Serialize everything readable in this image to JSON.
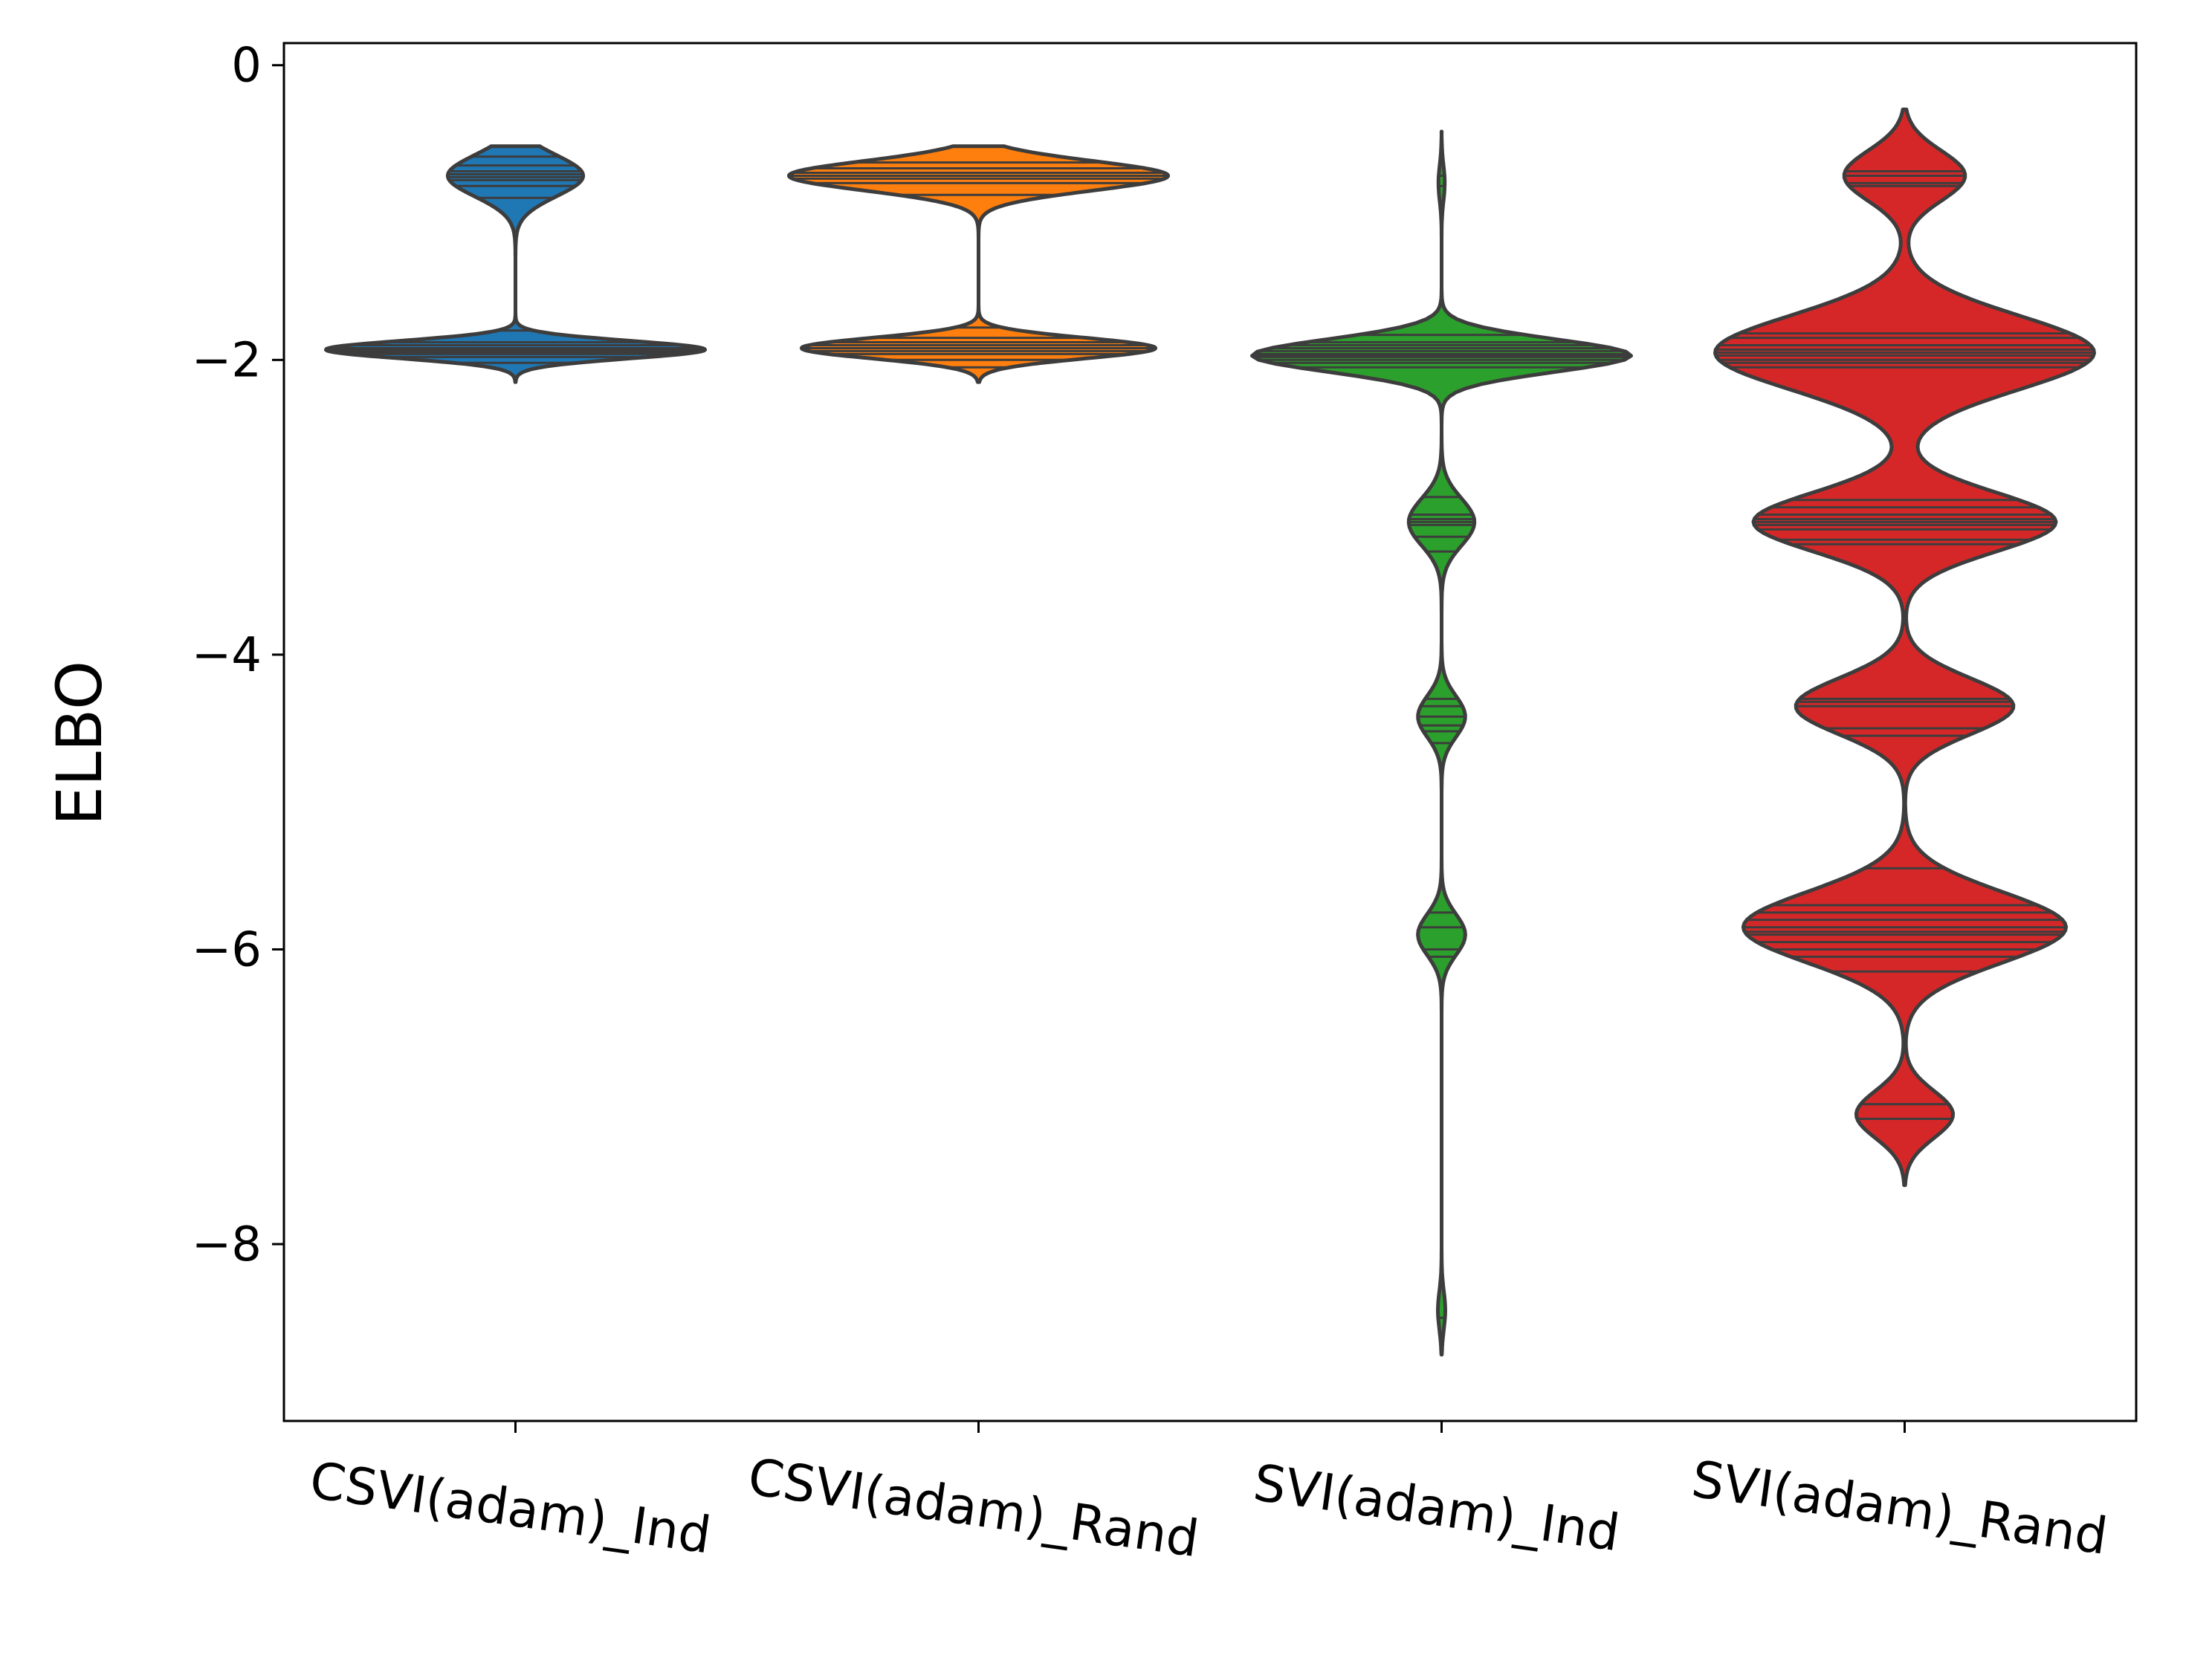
{
  "chart_data": {
    "type": "violin",
    "title": "",
    "xlabel": "",
    "ylabel": "ELBO",
    "ylim": [
      -9.2,
      0.15
    ],
    "yticks": [
      0,
      -2,
      -4,
      -6,
      -8
    ],
    "ytick_labels": [
      "0",
      "−2",
      "−4",
      "−6",
      "−8"
    ],
    "categories": [
      "CSVI(adam)_Ind",
      "CSVI(adam)_Rand",
      "SVI(adam)_Ind",
      "SVI(adam)_Rand"
    ],
    "colors": [
      "#1f77b4",
      "#ff7f0e",
      "#2ca02c",
      "#d62728"
    ],
    "edge_color": "#3d3d3d",
    "series": [
      {
        "range": [
          -2.15,
          -0.55
        ],
        "modes": [
          [
            -0.75,
            0.14,
            1.0
          ],
          [
            -1.93,
            0.06,
            2.8
          ]
        ],
        "observations": [
          -0.62,
          -0.68,
          -0.72,
          -0.74,
          -0.76,
          -0.78,
          -0.82,
          -0.9,
          -1.8,
          -1.88,
          -1.9,
          -1.92,
          -1.93,
          -1.94,
          -1.95,
          -1.96,
          -1.98,
          -2.02
        ]
      },
      {
        "range": [
          -2.15,
          -0.55
        ],
        "modes": [
          [
            -0.75,
            0.1,
            3.0
          ],
          [
            -1.92,
            0.07,
            2.8
          ]
        ],
        "observations": [
          -0.66,
          -0.7,
          -0.73,
          -0.75,
          -0.77,
          -0.8,
          -0.88,
          -1.78,
          -1.85,
          -1.88,
          -1.9,
          -1.92,
          -1.94,
          -1.96,
          -2.0,
          -2.05
        ]
      },
      {
        "range": [
          -8.75,
          -0.45
        ],
        "modes": [
          [
            -0.8,
            0.12,
            0.12
          ],
          [
            -1.97,
            0.11,
            7.2
          ],
          [
            -3.1,
            0.16,
            1.25
          ],
          [
            -4.42,
            0.14,
            0.9
          ],
          [
            -5.9,
            0.14,
            0.9
          ],
          [
            -8.45,
            0.13,
            0.14
          ]
        ],
        "observations": [
          -0.75,
          -0.82,
          -1.83,
          -1.88,
          -1.9,
          -1.92,
          -1.94,
          -1.96,
          -1.97,
          -1.98,
          -2.0,
          -2.02,
          -2.05,
          -2.93,
          -3.05,
          -3.08,
          -3.1,
          -3.12,
          -3.2,
          -3.3,
          -4.3,
          -4.35,
          -4.42,
          -4.48,
          -4.52,
          -4.6,
          -5.75,
          -5.85,
          -6.0,
          -6.05,
          -8.5
        ]
      },
      {
        "range": [
          -7.6,
          -0.3
        ],
        "modes": [
          [
            -0.75,
            0.17,
            1.5
          ],
          [
            -1.95,
            0.25,
            4.7
          ],
          [
            -3.1,
            0.2,
            3.75
          ],
          [
            -4.35,
            0.19,
            2.7
          ],
          [
            -5.85,
            0.24,
            4.0
          ],
          [
            -7.12,
            0.16,
            1.2
          ]
        ],
        "observations": [
          -0.72,
          -0.75,
          -0.8,
          -0.82,
          -1.82,
          -1.85,
          -1.9,
          -1.93,
          -1.95,
          -1.97,
          -2.0,
          -2.02,
          -2.05,
          -2.95,
          -3.0,
          -3.05,
          -3.08,
          -3.1,
          -3.12,
          -3.15,
          -3.22,
          -3.25,
          -4.3,
          -4.32,
          -4.35,
          -4.5,
          -4.55,
          -4.92,
          -5.45,
          -5.7,
          -5.75,
          -5.8,
          -5.85,
          -5.88,
          -5.9,
          -5.95,
          -6.0,
          -6.05,
          -6.15,
          -7.05,
          -7.15
        ]
      }
    ]
  }
}
